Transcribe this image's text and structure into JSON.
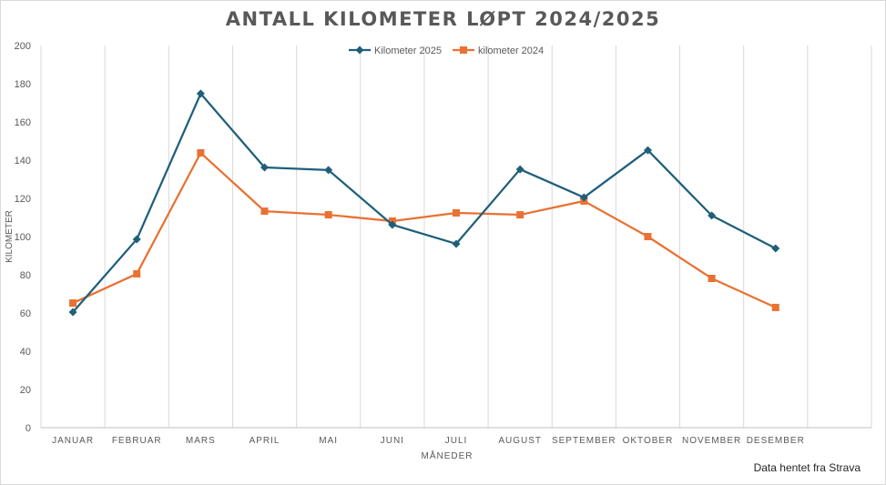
{
  "chart_data": {
    "type": "line",
    "title": "ANTALL KILOMETER LØPT 2024/2025",
    "xlabel": "MÅNEDER",
    "ylabel": "KILOMETER",
    "ylim": [
      0,
      200
    ],
    "yticks": [
      0,
      20,
      40,
      60,
      80,
      100,
      120,
      140,
      160,
      180,
      200
    ],
    "grid": "vertical",
    "legend": "top",
    "categories": [
      "JANUAR",
      "FEBRUAR",
      "MARS",
      "APRIL",
      "MAI",
      "JUNI",
      "JULI",
      "AUGUST",
      "SEPTEMBER",
      "OKTOBER",
      "NOVEMBER",
      "DESEMBER"
    ],
    "series": [
      {
        "name": "Kilometer 2025",
        "color": "#1f5f7a",
        "marker": "diamond",
        "values": [
          60.5,
          98.6,
          174.8,
          136.2,
          134.8,
          106.2,
          96.2,
          135.2,
          120.5,
          145.2,
          111,
          93.8
        ]
      },
      {
        "name": "kilometer 2024",
        "color": "#e97132",
        "marker": "square",
        "values": [
          65.2,
          80.5,
          143.8,
          113.3,
          111.4,
          108.1,
          112.4,
          111.4,
          118.6,
          100,
          78.1,
          62.9
        ]
      }
    ]
  },
  "footer": {
    "source": "Data hentet fra Strava"
  }
}
